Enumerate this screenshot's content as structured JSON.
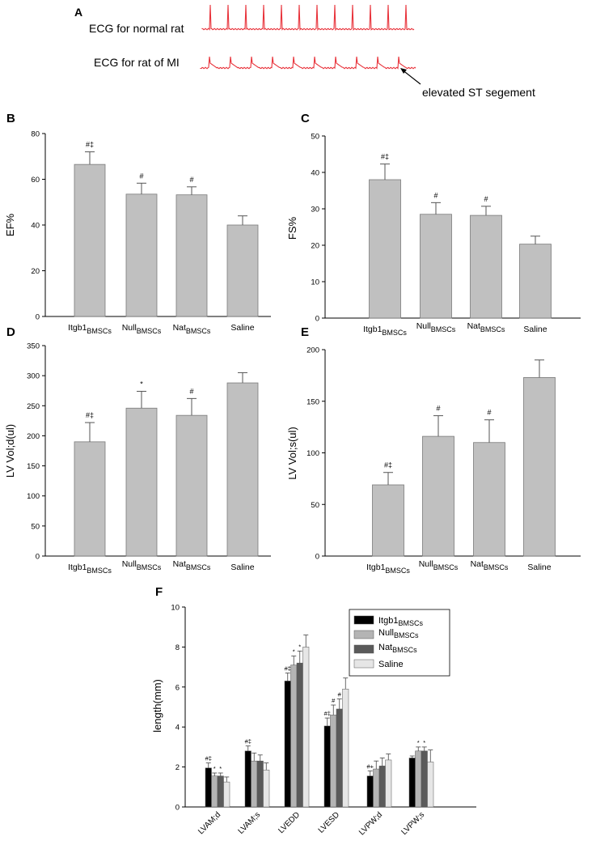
{
  "panel_a": {
    "letter": "A",
    "normal_label": "ECG for normal rat",
    "mi_label": "ECG for rat of MI",
    "annotation": "elevated ST segement",
    "trace_color": "#e8323a"
  },
  "colors": {
    "bar_fill": "#c0c0c0",
    "axis": "#000000"
  },
  "chart_data": [
    {
      "panel": "B",
      "type": "bar",
      "ylabel": "EF%",
      "ylim": [
        0,
        80
      ],
      "ticks": [
        0,
        20,
        40,
        60,
        80
      ],
      "categories": [
        {
          "main": "Itgb1",
          "sub": "BMSCs",
          "pos": "sub"
        },
        {
          "main": "Null",
          "sub": "BMSCs",
          "pos": "sub"
        },
        {
          "main": "Nat",
          "sub": "BMSCs",
          "pos": "sub"
        },
        {
          "main": "Saline",
          "sub": "",
          "pos": "none"
        }
      ],
      "values": [
        66.5,
        53.5,
        53.2,
        40
      ],
      "errors": [
        5.5,
        4.8,
        3.5,
        4
      ],
      "markers": [
        "#‡",
        "#",
        "#",
        ""
      ]
    },
    {
      "panel": "C",
      "type": "bar",
      "ylabel": "FS%",
      "ylim": [
        0,
        50
      ],
      "ticks": [
        0,
        10,
        20,
        30,
        40,
        50
      ],
      "categories": [
        {
          "main": "Itgb1",
          "sub": "BMSCs",
          "pos": "sub"
        },
        {
          "main": "Null",
          "sub": "BMSCs",
          "pos": "sup"
        },
        {
          "main": "Nat",
          "sub": "BMSCs",
          "pos": "sup"
        },
        {
          "main": "Saline",
          "sub": "",
          "pos": "none"
        }
      ],
      "values": [
        38,
        28.5,
        28.2,
        20.3
      ],
      "errors": [
        4.3,
        3.2,
        2.5,
        2.2
      ],
      "markers": [
        "#‡",
        "#",
        "#",
        ""
      ]
    },
    {
      "panel": "D",
      "type": "bar",
      "ylabel": "LV Vol;d(ul)",
      "ylim": [
        0,
        350
      ],
      "ticks": [
        0,
        50,
        100,
        150,
        200,
        250,
        300,
        350
      ],
      "categories": [
        {
          "main": "Itgb1",
          "sub": "BMSCs",
          "pos": "sub"
        },
        {
          "main": "Null",
          "sub": "BMSCs",
          "pos": "sup"
        },
        {
          "main": "Nat",
          "sub": "BMSCs",
          "pos": "sup"
        },
        {
          "main": "Saline",
          "sub": "",
          "pos": "none"
        }
      ],
      "values": [
        190,
        246,
        234,
        288
      ],
      "errors": [
        32,
        28,
        28,
        17
      ],
      "markers": [
        "#‡",
        "*",
        "#",
        ""
      ]
    },
    {
      "panel": "E",
      "type": "bar",
      "ylabel": "LV Vol;s(ul)",
      "ylim": [
        0,
        200
      ],
      "ticks": [
        0,
        50,
        100,
        150,
        200
      ],
      "categories": [
        {
          "main": "Itgb1",
          "sub": "BMSCs",
          "pos": "sub"
        },
        {
          "main": "Null",
          "sub": "BMSCs",
          "pos": "sup"
        },
        {
          "main": "Nat",
          "sub": "BMSCs",
          "pos": "sup"
        },
        {
          "main": "Saline",
          "sub": "",
          "pos": "none"
        }
      ],
      "values": [
        69,
        116,
        110,
        173
      ],
      "errors": [
        12,
        20,
        22,
        17
      ],
      "markers": [
        "#‡",
        "#",
        "#",
        ""
      ]
    },
    {
      "panel": "F",
      "type": "grouped-bar",
      "ylabel": "length(mm)",
      "ylim": [
        0,
        10
      ],
      "ticks": [
        0,
        2,
        4,
        6,
        8,
        10
      ],
      "categories": [
        "LVAM;d",
        "LVAM;s",
        "LVEDD",
        "LVESD",
        "LVPW;d",
        "LVPW;s"
      ],
      "series": [
        {
          "main": "Itgb1",
          "sub": "BMSCs",
          "color": "#000000",
          "values": [
            1.95,
            2.8,
            6.3,
            4.05,
            1.55,
            2.45
          ],
          "errors": [
            0.25,
            0.25,
            0.4,
            0.4,
            0.25,
            0.1
          ]
        },
        {
          "main": "Null",
          "sub": "BMSCs",
          "color": "#b4b4b4",
          "values": [
            1.55,
            2.3,
            7.1,
            4.6,
            1.9,
            2.8
          ],
          "errors": [
            0.15,
            0.4,
            0.45,
            0.5,
            0.4,
            0.2
          ]
        },
        {
          "main": "Nat",
          "sub": "BMSCs",
          "color": "#5a5a5a",
          "values": [
            1.55,
            2.3,
            7.2,
            4.9,
            2.05,
            2.8
          ],
          "errors": [
            0.15,
            0.3,
            0.6,
            0.5,
            0.4,
            0.2
          ]
        },
        {
          "main": "Saline",
          "sub": "",
          "color": "#e6e6e6",
          "values": [
            1.25,
            1.85,
            8.0,
            5.9,
            2.35,
            2.25
          ],
          "errors": [
            0.25,
            0.35,
            0.6,
            0.55,
            0.3,
            0.6
          ]
        }
      ],
      "markers": [
        [
          "#‡",
          "*",
          "*",
          ""
        ],
        [
          "#‡",
          "",
          "",
          ""
        ],
        [
          "#‡",
          "*",
          "*",
          ""
        ],
        [
          "#‡",
          "#",
          "#",
          ""
        ],
        [
          "#+",
          "",
          "",
          ""
        ],
        [
          "",
          "*",
          "*",
          ""
        ]
      ]
    }
  ]
}
